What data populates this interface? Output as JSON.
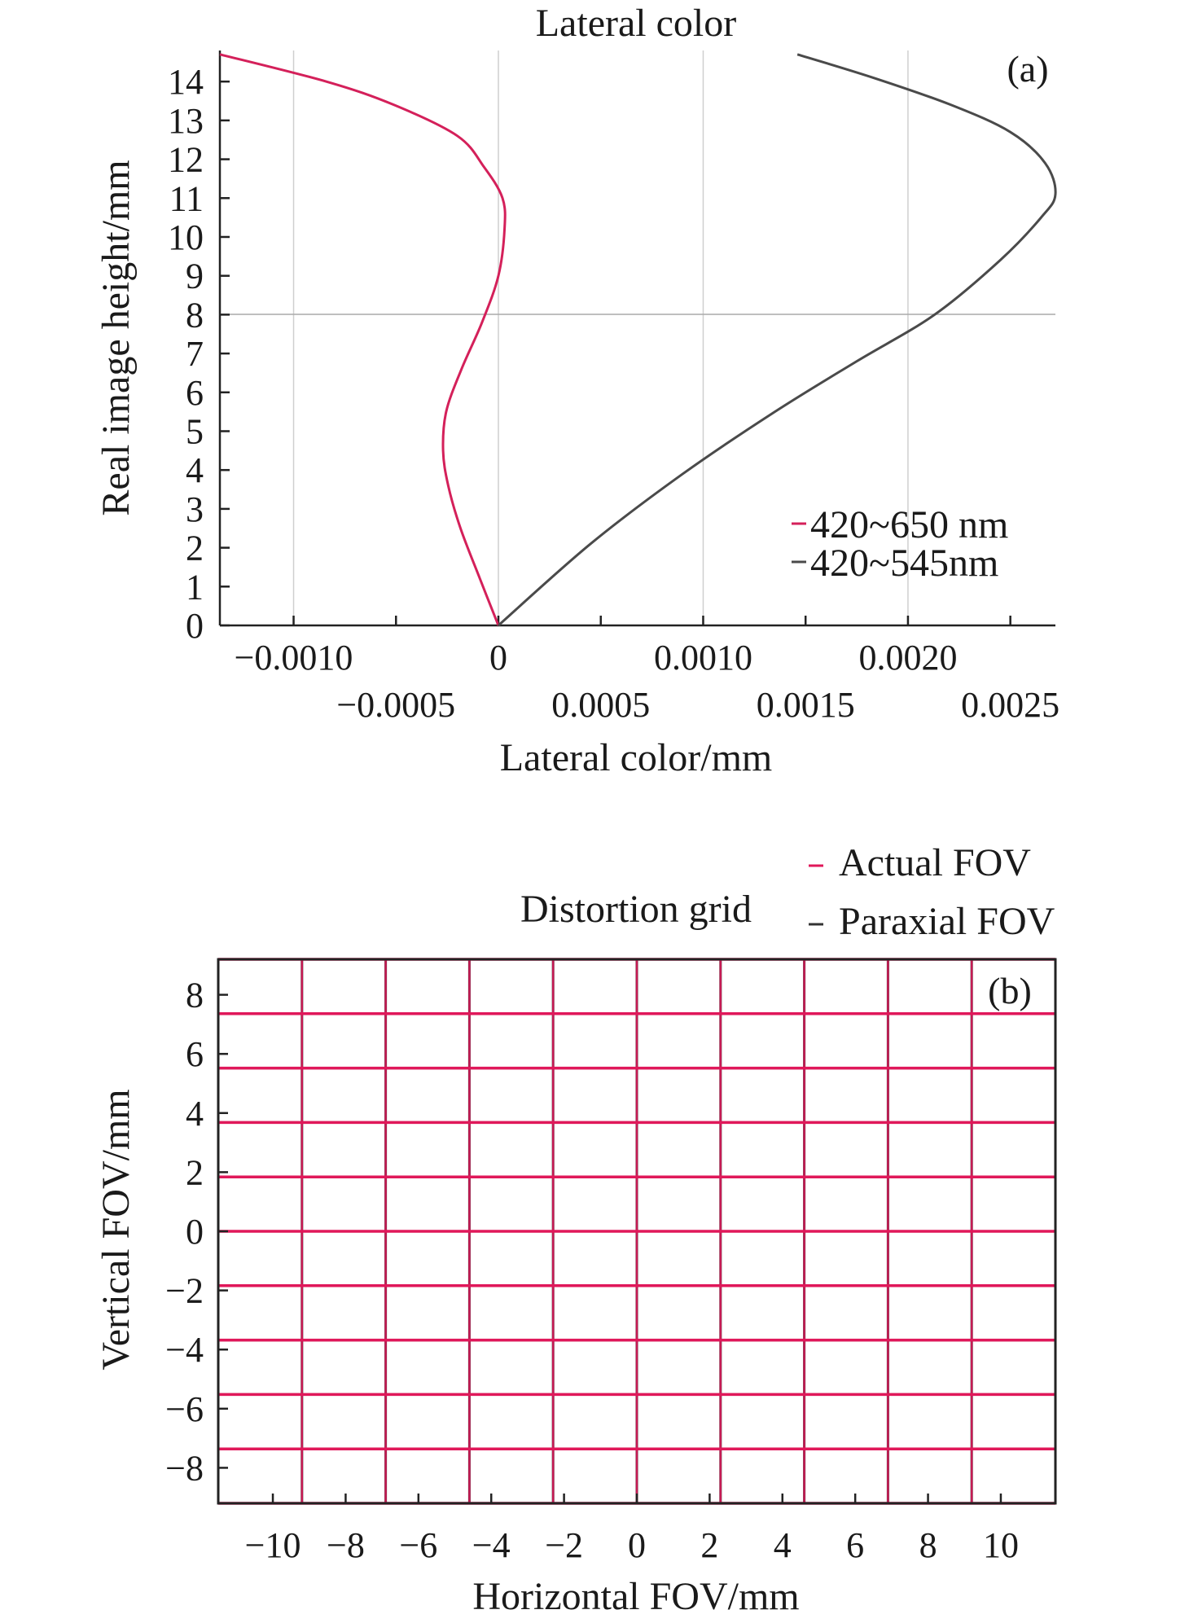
{
  "chart_data": [
    {
      "type": "line",
      "panel_label": "(a)",
      "title": "Lateral color",
      "xlabel": "Lateral color/mm",
      "ylabel": "Real image height/mm",
      "xlim": [
        -0.00136,
        0.00272
      ],
      "ylim": [
        0,
        14.8
      ],
      "x_ticks_upper": [
        {
          "value": -0.001,
          "label": "−0.0010"
        },
        {
          "value": 0,
          "label": "0"
        },
        {
          "value": 0.001,
          "label": "0.0010"
        },
        {
          "value": 0.002,
          "label": "0.0020"
        }
      ],
      "x_ticks_lower": [
        {
          "value": -0.0005,
          "label": "−0.0005"
        },
        {
          "value": 0.0005,
          "label": "0.0005"
        },
        {
          "value": 0.0015,
          "label": "0.0015"
        },
        {
          "value": 0.0025,
          "label": "0.0025"
        }
      ],
      "y_ticks": [
        0,
        1,
        2,
        3,
        4,
        5,
        6,
        7,
        8,
        9,
        10,
        11,
        12,
        13,
        14
      ],
      "grid": "vertical",
      "legend_position": "bottom-right",
      "series": [
        {
          "name": "420~650 nm",
          "color": "#d4205a",
          "points": [
            [
              0,
              0
            ],
            [
              -9e-05,
              1.2
            ],
            [
              -0.000185,
              2.5
            ],
            [
              -0.000245,
              3.6
            ],
            [
              -0.00027,
              4.5
            ],
            [
              -0.000255,
              5.5
            ],
            [
              -0.00018,
              6.6
            ],
            [
              -8e-05,
              7.8
            ],
            [
              0.0,
              9.0
            ],
            [
              3e-05,
              10.2
            ],
            [
              2e-05,
              11.0
            ],
            [
              -7e-05,
              11.8
            ],
            [
              -0.0002,
              12.6
            ],
            [
              -0.00051,
              13.4
            ],
            [
              -0.00084,
              14.0
            ],
            [
              -0.00136,
              14.7
            ]
          ]
        },
        {
          "name": "420~545nm",
          "color": "#4a4a4a",
          "points": [
            [
              0,
              0
            ],
            [
              0.00045,
              2.1
            ],
            [
              0.0009,
              3.9
            ],
            [
              0.00135,
              5.5
            ],
            [
              0.00175,
              6.8
            ],
            [
              0.00213,
              8.0
            ],
            [
              0.00245,
              9.4
            ],
            [
              0.00265,
              10.5
            ],
            [
              0.00272,
              11.1
            ],
            [
              0.00267,
              11.9
            ],
            [
              0.0025,
              12.7
            ],
            [
              0.00221,
              13.4
            ],
            [
              0.00183,
              14.1
            ],
            [
              0.00146,
              14.7
            ]
          ]
        }
      ]
    },
    {
      "type": "grid",
      "panel_label": "(b)",
      "title": "Distortion grid",
      "xlabel": "Horizontal FOV/mm",
      "ylabel": "Vertical FOV/mm",
      "xlim": [
        -11.5,
        11.5
      ],
      "ylim": [
        -9.2,
        9.2
      ],
      "x_ticks": [
        {
          "value": -10,
          "label": "−10"
        },
        {
          "value": -8,
          "label": "−8"
        },
        {
          "value": -6,
          "label": "−6"
        },
        {
          "value": -4,
          "label": "−4"
        },
        {
          "value": -2,
          "label": "−2"
        },
        {
          "value": 0,
          "label": "0"
        },
        {
          "value": 2,
          "label": "2"
        },
        {
          "value": 4,
          "label": "4"
        },
        {
          "value": 6,
          "label": "6"
        },
        {
          "value": 8,
          "label": "8"
        },
        {
          "value": 10,
          "label": "10"
        }
      ],
      "y_ticks": [
        {
          "value": 8,
          "label": "8"
        },
        {
          "value": 6,
          "label": "6"
        },
        {
          "value": 4,
          "label": "4"
        },
        {
          "value": 2,
          "label": "2"
        },
        {
          "value": 0,
          "label": "0"
        },
        {
          "value": -2,
          "label": "−2"
        },
        {
          "value": -4,
          "label": "−4"
        },
        {
          "value": -6,
          "label": "−6"
        },
        {
          "value": -8,
          "label": "−8"
        }
      ],
      "grid_x_values": [
        -11.5,
        -9.2,
        -6.9,
        -4.6,
        -2.3,
        0,
        2.3,
        4.6,
        6.9,
        9.2,
        11.5
      ],
      "grid_y_values": [
        -9.2,
        -7.36,
        -5.52,
        -3.68,
        -1.84,
        0,
        1.84,
        3.68,
        5.52,
        7.36,
        9.2
      ],
      "legend_position": "top-right, outside",
      "series": [
        {
          "name": "Actual FOV",
          "color": "#e0185a"
        },
        {
          "name": "Paraxial FOV",
          "color": "#333333"
        }
      ]
    }
  ]
}
